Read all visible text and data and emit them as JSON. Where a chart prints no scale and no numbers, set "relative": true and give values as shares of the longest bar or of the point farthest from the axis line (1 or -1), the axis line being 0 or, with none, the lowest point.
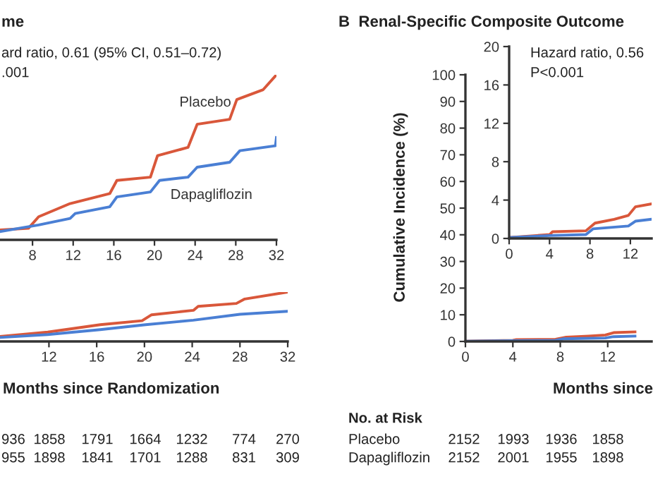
{
  "chart_data": [
    {
      "type": "line",
      "title": "me",
      "relative": true,
      "xlim": [
        4.8,
        32
      ],
      "xticks": [
        8,
        12,
        16,
        20,
        24,
        28,
        32
      ],
      "tick_labels": "x",
      "grid": false,
      "legend": false,
      "annotations": [
        "ard ratio, 0.61 (95% CI, 0.51–0.72)",
        ".001"
      ],
      "series": [
        {
          "name": "Placebo",
          "color": "#d9573a",
          "x": [
            4.8,
            7.6,
            8.6,
            11.7,
            15.6,
            16.3,
            19.6,
            20.3,
            23.3,
            24.2,
            27.4,
            28.1,
            30.7,
            32
          ],
          "values": [
            0.06,
            0.07,
            0.14,
            0.22,
            0.28,
            0.36,
            0.38,
            0.51,
            0.56,
            0.7,
            0.73,
            0.85,
            0.91,
            1.0
          ]
        },
        {
          "name": "Dapagliflozin",
          "color": "#4a7fd4",
          "x": [
            4.8,
            8.6,
            11.7,
            12.2,
            15.6,
            16.3,
            19.6,
            20.5,
            23.3,
            24.2,
            27.4,
            28.4,
            31.9,
            32
          ],
          "values": [
            0.05,
            0.09,
            0.13,
            0.16,
            0.2,
            0.26,
            0.29,
            0.36,
            0.38,
            0.44,
            0.47,
            0.54,
            0.57,
            0.62
          ]
        }
      ]
    },
    {
      "type": "line",
      "relative": true,
      "xlim": [
        7.9,
        32
      ],
      "xticks": [
        12,
        16,
        20,
        24,
        28,
        32
      ],
      "tick_labels": "x",
      "grid": false,
      "legend": false,
      "xlabel": "Months since Randomization",
      "annotations": [
        "936",
        "1858",
        "1791",
        "1664",
        "1232",
        "774",
        "270",
        "955",
        "1898",
        "1841",
        "1701",
        "1288",
        "831",
        "309"
      ],
      "series": [
        {
          "color": "#d9573a",
          "x": [
            7.9,
            11.9,
            16.3,
            19.8,
            20.6,
            24.1,
            24.5,
            27.7,
            28.4,
            32
          ],
          "values": [
            0.1,
            0.19,
            0.34,
            0.42,
            0.54,
            0.63,
            0.71,
            0.77,
            0.86,
            1.0
          ]
        },
        {
          "color": "#4a7fd4",
          "x": [
            7.9,
            11.9,
            16.3,
            20.1,
            24.1,
            28,
            32
          ],
          "values": [
            0.08,
            0.14,
            0.24,
            0.34,
            0.43,
            0.55,
            0.61
          ]
        }
      ]
    },
    {
      "type": "line",
      "title": "B  Renal-Specific Composite Outcome",
      "ylabel": "Cumulative Incidence (%)",
      "xlabel": "Months since",
      "xlim": [
        0,
        15.7
      ],
      "xticks": [
        0,
        4,
        8,
        12
      ],
      "ylim": [
        0,
        100
      ],
      "yticks": [
        0,
        10,
        20,
        30,
        40,
        50,
        60,
        70,
        80,
        90,
        100
      ],
      "grid": false,
      "legend": false,
      "annotations": [
        "No. at Risk",
        "Placebo",
        "Dapagliflozin",
        "2152",
        "1993",
        "1936",
        "1858",
        "2152",
        "2001",
        "1955",
        "1898"
      ],
      "series": [
        {
          "color": "#d9573a",
          "x": [
            0,
            4,
            4.3,
            7.6,
            8.5,
            10.4,
            11.8,
            12.5,
            14.3
          ],
          "values": [
            0.1,
            0.4,
            0.7,
            0.8,
            1.6,
            2.0,
            2.4,
            3.3,
            3.6
          ]
        },
        {
          "color": "#4a7fd4",
          "x": [
            0,
            4,
            7.6,
            8.3,
            11.8,
            12.5,
            14.3
          ],
          "values": [
            0.1,
            0.3,
            0.4,
            1.0,
            1.3,
            1.8,
            2.0
          ]
        }
      ]
    },
    {
      "type": "line",
      "xlim": [
        0,
        14.1
      ],
      "xticks": [
        0,
        4,
        8,
        12
      ],
      "ylim": [
        0,
        20
      ],
      "yticks": [
        0,
        4,
        8,
        12,
        16,
        20
      ],
      "grid": false,
      "legend": false,
      "annotations": [
        "Hazard ratio, 0.56",
        "P<0.001"
      ],
      "series": [
        {
          "color": "#d9573a",
          "x": [
            0,
            4,
            4.3,
            7.6,
            8.5,
            10.4,
            11.8,
            12.5,
            14.1
          ],
          "values": [
            0.1,
            0.4,
            0.7,
            0.8,
            1.6,
            2.0,
            2.4,
            3.3,
            3.6
          ]
        },
        {
          "color": "#4a7fd4",
          "x": [
            0,
            4,
            7.6,
            8.3,
            11.8,
            12.5,
            14.1
          ],
          "values": [
            0.1,
            0.3,
            0.4,
            1.0,
            1.3,
            1.8,
            2.0
          ]
        }
      ]
    }
  ]
}
